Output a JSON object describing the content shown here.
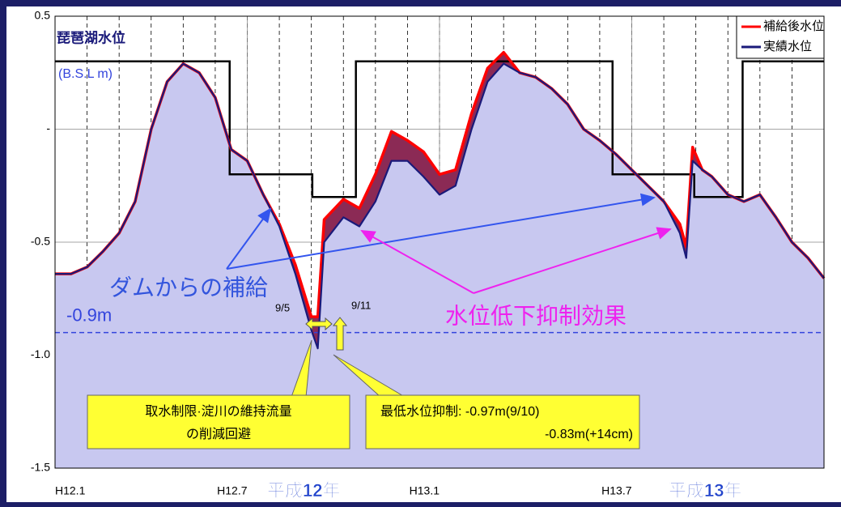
{
  "chart_data": {
    "type": "line",
    "title": "琵琶湖水位",
    "subtitle": "(B.S.L m)",
    "x": [
      0,
      0.5,
      1,
      1.5,
      2,
      2.5,
      3,
      3.5,
      4,
      4.5,
      5,
      5.5,
      6,
      6.5,
      7,
      7.5,
      8,
      8.2,
      8.4,
      9,
      9.5,
      10,
      10.5,
      11,
      11.5,
      12,
      12.5,
      13,
      13.5,
      14,
      14.5,
      15,
      15.5,
      16,
      16.5,
      17,
      17.5,
      18,
      18.5,
      19,
      19.5,
      19.7,
      19.9,
      20.2,
      20.5,
      21,
      21.5,
      22,
      22.5,
      23,
      23.5,
      24
    ],
    "series": [
      {
        "name": "補給後水位",
        "color": "#ff0000",
        "values": [
          -0.64,
          -0.64,
          -0.61,
          -0.54,
          -0.46,
          -0.32,
          0,
          0.21,
          0.29,
          0.25,
          0.14,
          -0.09,
          -0.14,
          -0.29,
          -0.42,
          -0.6,
          -0.83,
          -0.83,
          -0.4,
          -0.31,
          -0.35,
          -0.2,
          -0.01,
          -0.05,
          -0.1,
          -0.2,
          -0.18,
          0.07,
          0.27,
          0.34,
          0.25,
          0.23,
          0.18,
          0.11,
          0,
          -0.05,
          -0.11,
          -0.18,
          -0.25,
          -0.32,
          -0.42,
          -0.52,
          -0.08,
          -0.18,
          -0.21,
          -0.29,
          -0.32,
          -0.29,
          -0.39,
          -0.5,
          -0.57,
          -0.66
        ]
      },
      {
        "name": "実績水位",
        "color": "#1a1a7a",
        "values": [
          -0.64,
          -0.64,
          -0.61,
          -0.54,
          -0.46,
          -0.32,
          0,
          0.21,
          0.29,
          0.25,
          0.14,
          -0.09,
          -0.14,
          -0.29,
          -0.43,
          -0.64,
          -0.89,
          -0.97,
          -0.5,
          -0.39,
          -0.43,
          -0.32,
          -0.14,
          -0.14,
          -0.21,
          -0.29,
          -0.25,
          0,
          0.21,
          0.29,
          0.25,
          0.23,
          0.18,
          0.11,
          0,
          -0.05,
          -0.11,
          -0.18,
          -0.25,
          -0.32,
          -0.46,
          -0.57,
          -0.14,
          -0.18,
          -0.21,
          -0.29,
          -0.32,
          -0.29,
          -0.39,
          -0.5,
          -0.57,
          -0.66
        ]
      }
    ],
    "steps": {
      "color": "#000000",
      "x": [
        0,
        5.45,
        8.03,
        9.39,
        17.4,
        19.95,
        21.46,
        24
      ],
      "values": [
        0.3,
        -0.2,
        -0.3,
        0.3,
        -0.2,
        -0.3,
        0.3,
        0.3
      ]
    },
    "hline": {
      "value": -0.9,
      "label": "-0.9m",
      "color": "#3344dd"
    },
    "xlim": [
      0,
      24
    ],
    "xticks": [
      {
        "value": 0,
        "label": "H12.1"
      },
      {
        "value": 6,
        "label": "H12.7"
      },
      {
        "value": 12,
        "label": "H13.1"
      },
      {
        "value": 18,
        "label": "H13.7"
      }
    ],
    "ylim": [
      -1.5,
      0.5
    ],
    "yticks": [
      0.5,
      {
        "value": 0,
        "label": "-"
      },
      -0.5,
      {
        "value": -1,
        "label": "-1.0"
      },
      -1.5
    ],
    "grid": true,
    "legend": "upper right",
    "annotations": {
      "supply": "ダムからの補給",
      "effect": "水位低下抑制効果",
      "d95": "9/5",
      "d911": "9/11",
      "box1": [
        "取水制限·淀川の維持流量",
        "の削減回避"
      ],
      "box2": [
        "最低水位抑制: -0.97m(9/10)",
        "-0.83m(+14cm)"
      ],
      "year1": "平成12年",
      "year2": "平成13年"
    }
  }
}
